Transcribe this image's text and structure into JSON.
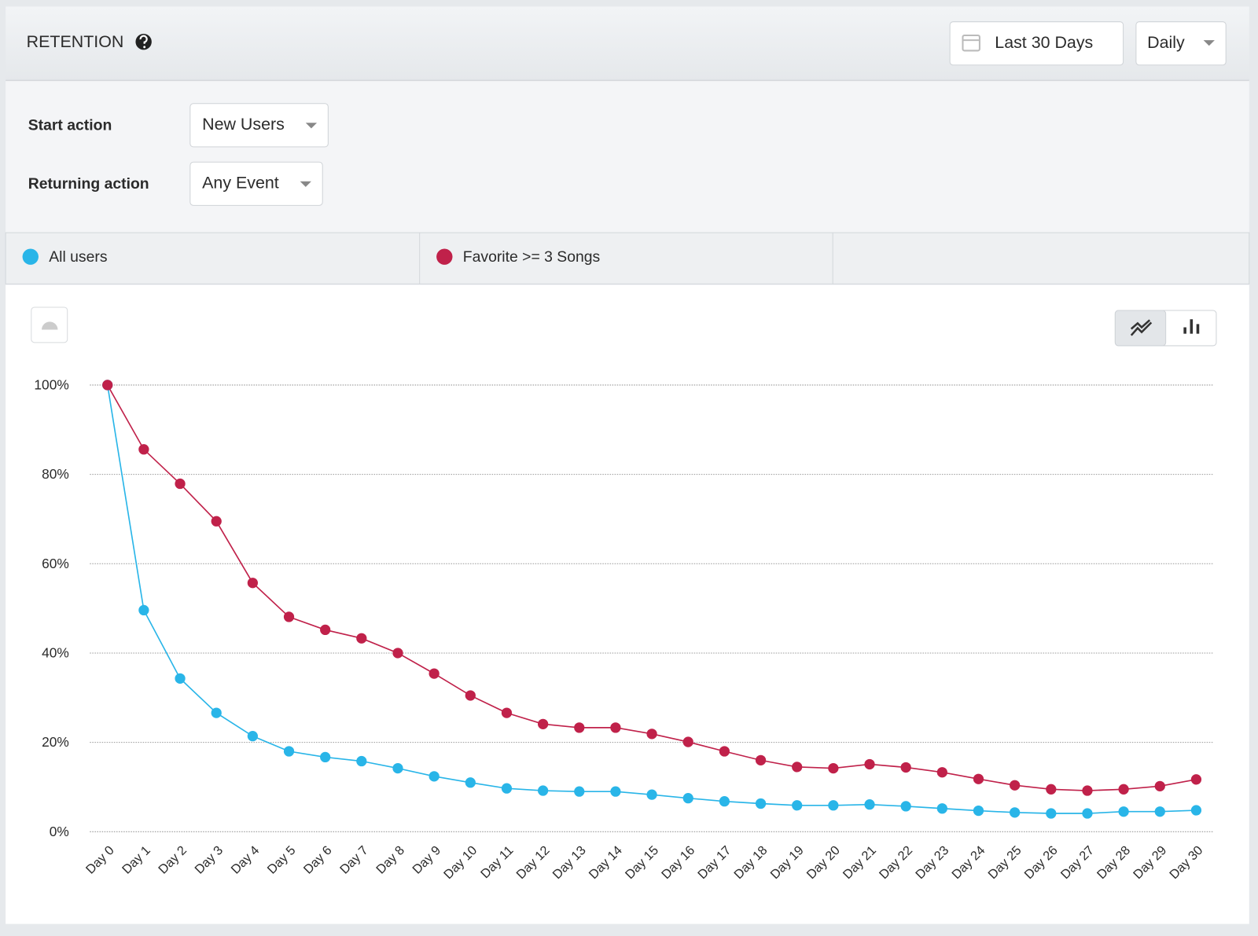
{
  "header": {
    "title": "RETENTION",
    "date_range": "Last 30 Days",
    "interval": "Daily"
  },
  "controls": {
    "start_label": "Start action",
    "start_value": "New Users",
    "returning_label": "Returning action",
    "returning_value": "Any Event"
  },
  "chart_data": {
    "type": "line",
    "categories": [
      "Day 0",
      "Day 1",
      "Day 2",
      "Day 3",
      "Day 4",
      "Day 5",
      "Day 6",
      "Day 7",
      "Day 8",
      "Day 9",
      "Day 10",
      "Day 11",
      "Day 12",
      "Day 13",
      "Day 14",
      "Day 15",
      "Day 16",
      "Day 17",
      "Day 18",
      "Day 19",
      "Day 20",
      "Day 21",
      "Day 22",
      "Day 23",
      "Day 24",
      "Day 25",
      "Day 26",
      "Day 27",
      "Day 28",
      "Day 29",
      "Day 30"
    ],
    "series": [
      {
        "name": "All users",
        "color": "#29b5e8",
        "values": [
          100,
          49.6,
          34.3,
          26.6,
          21.4,
          18.0,
          16.7,
          15.8,
          14.2,
          12.4,
          11.0,
          9.7,
          9.2,
          9.0,
          9.0,
          8.3,
          7.5,
          6.8,
          6.3,
          5.9,
          5.9,
          6.1,
          5.7,
          5.2,
          4.7,
          4.3,
          4.1,
          4.1,
          4.5,
          4.5,
          4.8
        ]
      },
      {
        "name": "Favorite >= 3 Songs",
        "color": "#c0214a",
        "values": [
          100,
          85.6,
          77.9,
          69.5,
          55.7,
          48.1,
          45.2,
          43.3,
          40.0,
          35.4,
          30.5,
          26.6,
          24.1,
          23.3,
          23.3,
          21.9,
          20.1,
          18.0,
          16.0,
          14.5,
          14.2,
          15.1,
          14.4,
          13.3,
          11.8,
          10.4,
          9.5,
          9.2,
          9.5,
          10.2,
          11.7
        ]
      }
    ],
    "ylim": [
      0,
      100
    ],
    "yticks": [
      {
        "value": 0,
        "label": "0%"
      },
      {
        "value": 20,
        "label": "20%"
      },
      {
        "value": 40,
        "label": "40%"
      },
      {
        "value": 60,
        "label": "60%"
      },
      {
        "value": 80,
        "label": "80%"
      },
      {
        "value": 100,
        "label": "100%"
      }
    ],
    "grid": true
  }
}
